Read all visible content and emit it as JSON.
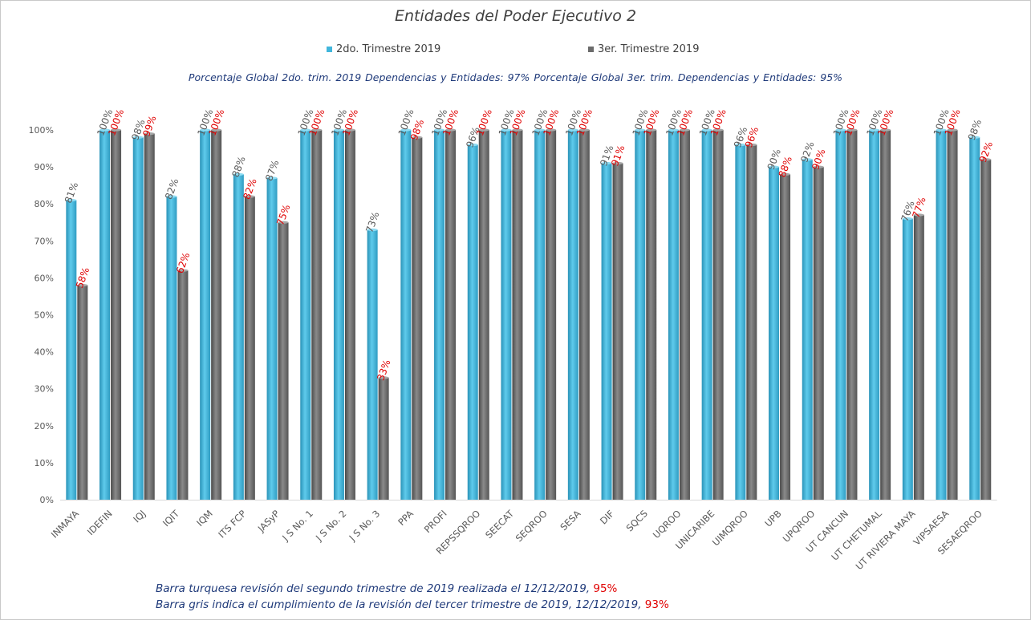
{
  "chart_data": {
    "type": "bar",
    "title": "Entidades del Poder Ejecutivo 2",
    "categories": [
      "INMAYA",
      "IDEFIN",
      "IQJ",
      "IQIT",
      "IQM",
      "ITS FCP",
      "JASyP",
      "J S No. 1",
      "J S No. 2",
      "J S No. 3",
      "PPA",
      "PROFI",
      "REPSSQROO",
      "SEECAT",
      "SEQROO",
      "SESA",
      "DIF",
      "SQCS",
      "UQROO",
      "UNICARIBE",
      "UIMQROO",
      "UPB",
      "UPQROO",
      "UT CANCUN",
      "UT CHETUMAL",
      "UT RIVIERA MAYA",
      "VIPSAESA",
      "SESAEQROO"
    ],
    "series": [
      {
        "name": "2do. Trimestre 2019",
        "color": "#41b6dc",
        "values": [
          81,
          100,
          98,
          82,
          100,
          88,
          87,
          100,
          100,
          73,
          100,
          100,
          96,
          100,
          100,
          100,
          91,
          100,
          100,
          100,
          96,
          90,
          92,
          100,
          100,
          76,
          100,
          98
        ]
      },
      {
        "name": "3er. Trimestre 2019",
        "color": "#6b6b6b",
        "values": [
          58,
          100,
          99,
          62,
          100,
          82,
          75,
          100,
          100,
          33,
          98,
          100,
          100,
          100,
          100,
          100,
          91,
          100,
          100,
          100,
          96,
          88,
          90,
          100,
          100,
          77,
          100,
          92
        ]
      }
    ],
    "ylim": [
      0,
      100
    ],
    "yticks": [
      "0%",
      "10%",
      "20%",
      "30%",
      "40%",
      "50%",
      "60%",
      "70%",
      "80%",
      "90%",
      "100%"
    ],
    "value_suffix": "%",
    "legend": "top-center",
    "grid": false
  },
  "header": {
    "globals_text": "Porcentaje Global 2do. trim.  2019 Dependencias y Entidades: 97%    Porcentaje Global  3er. trim. Dependencias y Entidades: 95%"
  },
  "notes": {
    "line1_text": "Barra turquesa  revisión del segundo  trimestre de 2019 realizada el  12/12/2019, ",
    "line1_pct": "95%",
    "line2_text": "Barra gris indica el cumplimiento  de la revisión del tercer trimestre de 2019,  12/12/2019,  ",
    "line2_pct": "93%"
  }
}
